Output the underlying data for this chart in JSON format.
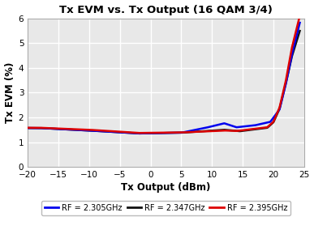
{
  "title": "Tx EVM vs. Tx Output (16 QAM 3/4)",
  "xlabel": "Tx Output (dBm)",
  "ylabel": "Tx EVM (%)",
  "xlim": [
    -20,
    25
  ],
  "ylim": [
    0,
    6
  ],
  "xticks": [
    -20,
    -15,
    -10,
    -5,
    0,
    5,
    10,
    15,
    20,
    25
  ],
  "yticks": [
    0,
    1,
    2,
    3,
    4,
    5,
    6
  ],
  "legend": [
    {
      "label": "RF = 2.305GHz",
      "color": "#0000EE",
      "linewidth": 1.8
    },
    {
      "label": "RF = 2.347GHz",
      "color": "#111111",
      "linewidth": 1.8
    },
    {
      "label": "RF = 2.395GHz",
      "color": "#DD0000",
      "linewidth": 1.8
    }
  ],
  "plot_bg_color": "#e8e8e8",
  "fig_bg_color": "#ffffff",
  "grid_color": "#ffffff",
  "title_fontsize": 9.5,
  "label_fontsize": 8.5,
  "tick_fontsize": 7.5
}
